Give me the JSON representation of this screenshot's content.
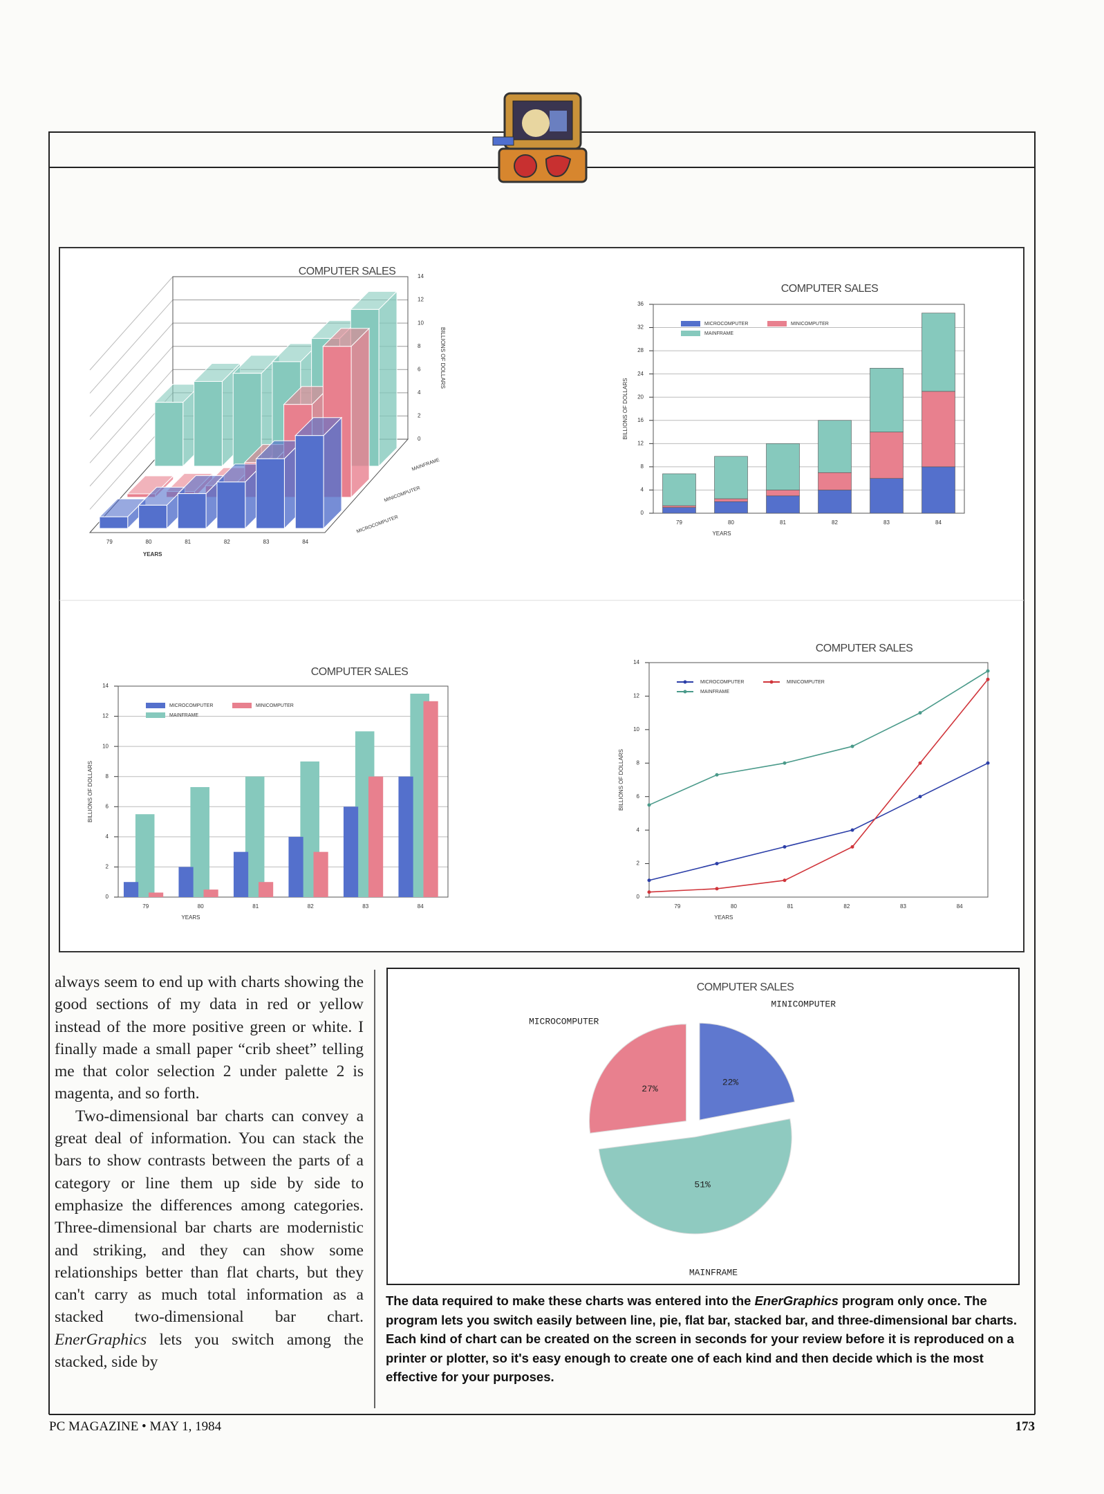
{
  "chart_data": [
    {
      "type": "bar3d",
      "title": "COMPUTER SALES",
      "x_label": "YEARS",
      "y_label": "BILLIONS OF DOLLARS",
      "categories": [
        "79",
        "80",
        "81",
        "82",
        "83",
        "84"
      ],
      "series": [
        {
          "name": "MICROCOMPUTER",
          "color": "#5470cc",
          "values": [
            1,
            2,
            3,
            4,
            6,
            8
          ]
        },
        {
          "name": "MINICOMPUTER",
          "color": "#e8808e",
          "values": [
            0.3,
            0.5,
            1,
            3,
            8,
            13
          ]
        },
        {
          "name": "MAINFRAME",
          "color": "#86c9bd",
          "values": [
            5.5,
            7.3,
            8,
            9,
            11,
            13.5
          ]
        }
      ],
      "ylim": [
        0,
        14
      ],
      "yticks": [
        0,
        2,
        4,
        6,
        8,
        10,
        12,
        14
      ],
      "grid": true
    },
    {
      "type": "stacked_bar",
      "title": "COMPUTER SALES",
      "x_label": "YEARS",
      "y_label": "BILLIONS OF DOLLARS",
      "categories": [
        "79",
        "80",
        "81",
        "82",
        "83",
        "84"
      ],
      "series": [
        {
          "name": "MICROCOMPUTER",
          "color": "#5470cc",
          "values": [
            1,
            2,
            3,
            4,
            6,
            8
          ]
        },
        {
          "name": "MINICOMPUTER",
          "color": "#e8808e",
          "values": [
            0.3,
            0.5,
            1,
            3,
            8,
            13
          ]
        },
        {
          "name": "MAINFRAME",
          "color": "#86c9bd",
          "values": [
            5.5,
            7.3,
            8,
            9,
            11,
            13.5
          ]
        }
      ],
      "ylim": [
        0,
        36
      ],
      "yticks": [
        0,
        4,
        8,
        12,
        16,
        20,
        24,
        28,
        32,
        36
      ],
      "grid": true
    },
    {
      "type": "bar",
      "title": "COMPUTER SALES",
      "x_label": "YEARS",
      "y_label": "BILLIONS OF DOLLARS",
      "categories": [
        "79",
        "80",
        "81",
        "82",
        "83",
        "84"
      ],
      "series": [
        {
          "name": "MICROCOMPUTER",
          "color": "#5470cc",
          "values": [
            1,
            2,
            3,
            4,
            6,
            8
          ]
        },
        {
          "name": "MINICOMPUTER",
          "color": "#e8808e",
          "values": [
            0.3,
            0.5,
            1,
            3,
            8,
            13
          ]
        },
        {
          "name": "MAINFRAME",
          "color": "#86c9bd",
          "values": [
            5.5,
            7.3,
            8,
            9,
            11,
            13.5
          ]
        }
      ],
      "ylim": [
        0,
        14
      ],
      "yticks": [
        0,
        2,
        4,
        6,
        8,
        10,
        12,
        14
      ],
      "grid": true
    },
    {
      "type": "line",
      "title": "COMPUTER SALES",
      "x_label": "YEARS",
      "y_label": "BILLIONS OF DOLLARS",
      "categories": [
        "79",
        "80",
        "81",
        "82",
        "83",
        "84"
      ],
      "series": [
        {
          "name": "MICROCOMPUTER",
          "color": "#2c3fa8",
          "values": [
            1,
            2,
            3,
            4,
            6,
            8
          ]
        },
        {
          "name": "MINICOMPUTER",
          "color": "#d0343a",
          "values": [
            0.3,
            0.5,
            1,
            3,
            8,
            13
          ]
        },
        {
          "name": "MAINFRAME",
          "color": "#4a9a8a",
          "values": [
            5.5,
            7.3,
            8,
            9,
            11,
            13.5
          ]
        }
      ],
      "ylim": [
        0,
        14
      ],
      "yticks": [
        0,
        2,
        4,
        6,
        8,
        10,
        12,
        14
      ],
      "grid": false
    },
    {
      "type": "pie",
      "title": "COMPUTER SALES",
      "categories": [
        "MICROCOMPUTER",
        "MINICOMPUTER",
        "MAINFRAME"
      ],
      "values": [
        27,
        22,
        51
      ],
      "value_labels": [
        "27%",
        "22%",
        "51%"
      ],
      "colors": [
        "#e8808e",
        "#5f78cf",
        "#8fcac0"
      ]
    }
  ],
  "article": {
    "paragraphs": [
      [
        "always seem to end up with charts showing the good sections of my data in red or yellow instead of the more positive green or white. I finally made a small paper “crib sheet” telling me that color selection 2 under palette 2 is magenta, and so forth."
      ],
      [
        "Two-dimensional bar charts can convey a great deal of information. You can stack the bars to show contrasts between the parts of a category or line them up side by side to emphasize the differences among categories. Three-dimensional bar charts are modernistic and striking, and they can show some relationships better than flat charts, but they can't carry as much total information as a stacked two-dimensional bar chart. ",
        "EnerGraphics",
        " lets you switch among the stacked, side by"
      ]
    ]
  },
  "caption": [
    "The data required to make these charts was entered into the ",
    "EnerGraphics",
    " program only once. The program lets you switch easily between line, pie, flat bar, stacked bar, and three-dimensional bar charts. Each kind of chart can be created on the screen in seconds for your review before it is reproduced on a printer or plotter, so it's easy enough to create one of each kind and then decide which is the most effective for your purposes."
  ],
  "footer": {
    "left": "PC MAGAZINE • MAY 1, 1984",
    "page": "173"
  }
}
